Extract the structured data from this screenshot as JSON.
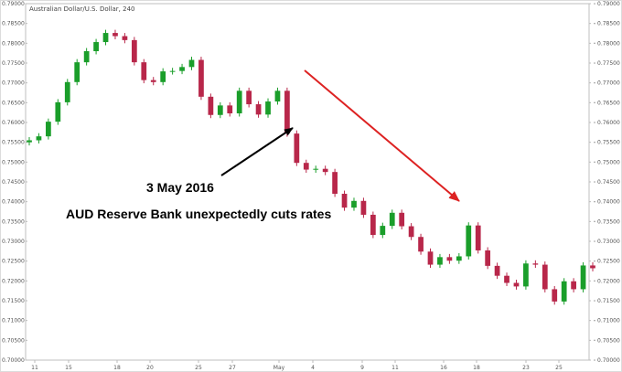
{
  "chart_data": {
    "type": "candlestick",
    "title": "Australian Dollar/U.S. Dollar, 240",
    "ylim": [
      0.7,
      0.79
    ],
    "y_ticks": [
      "0.79000",
      "0.78500",
      "0.78000",
      "0.77500",
      "0.77000",
      "0.76500",
      "0.76000",
      "0.75500",
      "0.75000",
      "0.74500",
      "0.74000",
      "0.73500",
      "0.73000",
      "0.72500",
      "0.72000",
      "0.71500",
      "0.71000",
      "0.70500",
      "0.70000"
    ],
    "x_ticks": [
      "11",
      "15",
      "18",
      "20",
      "25",
      "27",
      "May",
      "4",
      "9",
      "11",
      "16",
      "18",
      "23",
      "25"
    ],
    "grid": false,
    "up_color": "#1a9e2a",
    "down_color": "#b8274a",
    "close_path": [
      0.7555,
      0.7565,
      0.7602,
      0.7651,
      0.7702,
      0.7752,
      0.778,
      0.7803,
      0.7826,
      0.7818,
      0.7808,
      0.7752,
      0.7707,
      0.7702,
      0.7729,
      0.773,
      0.774,
      0.7758,
      0.7665,
      0.7619,
      0.7643,
      0.7623,
      0.768,
      0.7646,
      0.762,
      0.7653,
      0.768,
      0.7572,
      0.7498,
      0.7481,
      0.7483,
      0.7475,
      0.742,
      0.7385,
      0.7402,
      0.7367,
      0.7316,
      0.7339,
      0.7372,
      0.7338,
      0.7311,
      0.7274,
      0.7241,
      0.726,
      0.7251,
      0.7262,
      0.734,
      0.7277,
      0.7238,
      0.7213,
      0.7195,
      0.7186,
      0.7244,
      0.7241,
      0.7179,
      0.7148,
      0.7199,
      0.7179,
      0.7239,
      0.7232
    ],
    "start_close": 0.7555,
    "series": [
      {
        "name": "",
        "values": []
      }
    ]
  },
  "annotations": {
    "date_label": "3 May 2016",
    "event_label": "AUD Reserve Bank unexpectedly cuts rates",
    "arrow_color": "#000000",
    "trend_arrow_color": "#dd2222"
  }
}
